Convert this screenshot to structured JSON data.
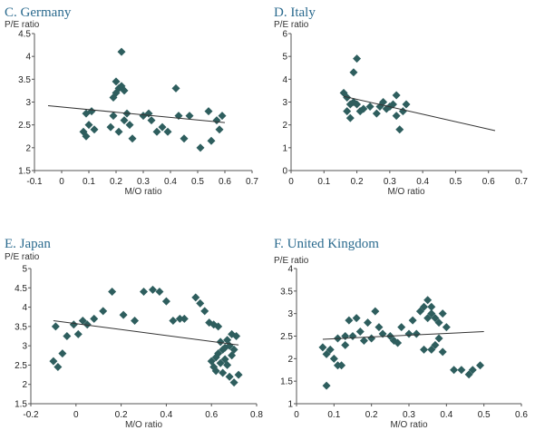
{
  "chart_data": [
    {
      "type": "scatter",
      "title": "C. Germany",
      "ylabel": "P/E ratio",
      "xlabel": "M/O ratio",
      "xlim": [
        -0.1,
        0.7
      ],
      "ylim": [
        1.5,
        4.5
      ],
      "xticks": [
        "-0.1",
        "0",
        "0.1",
        "0.2",
        "0.3",
        "0.4",
        "0.5",
        "0.6",
        "0.7"
      ],
      "yticks": [
        "1.5",
        "2",
        "2.5",
        "3",
        "3.5",
        "4",
        "4.5"
      ],
      "points": [
        [
          0.08,
          2.35
        ],
        [
          0.09,
          2.25
        ],
        [
          0.09,
          2.75
        ],
        [
          0.1,
          2.5
        ],
        [
          0.11,
          2.8
        ],
        [
          0.12,
          2.4
        ],
        [
          0.18,
          2.45
        ],
        [
          0.19,
          2.7
        ],
        [
          0.19,
          3.1
        ],
        [
          0.2,
          3.2
        ],
        [
          0.2,
          3.45
        ],
        [
          0.21,
          3.3
        ],
        [
          0.21,
          2.35
        ],
        [
          0.22,
          4.1
        ],
        [
          0.22,
          3.35
        ],
        [
          0.23,
          2.6
        ],
        [
          0.23,
          3.25
        ],
        [
          0.24,
          2.75
        ],
        [
          0.25,
          2.5
        ],
        [
          0.26,
          2.2
        ],
        [
          0.3,
          2.7
        ],
        [
          0.32,
          2.75
        ],
        [
          0.33,
          2.6
        ],
        [
          0.35,
          2.35
        ],
        [
          0.37,
          2.45
        ],
        [
          0.39,
          2.35
        ],
        [
          0.42,
          3.3
        ],
        [
          0.43,
          2.7
        ],
        [
          0.45,
          2.2
        ],
        [
          0.47,
          2.7
        ],
        [
          0.51,
          2.0
        ],
        [
          0.54,
          2.8
        ],
        [
          0.55,
          2.15
        ],
        [
          0.57,
          2.6
        ],
        [
          0.58,
          2.4
        ],
        [
          0.59,
          2.7
        ]
      ],
      "trend": [
        [
          -0.05,
          2.92
        ],
        [
          0.6,
          2.55
        ]
      ]
    },
    {
      "type": "scatter",
      "title": "D. Italy",
      "ylabel": "P/E ratio",
      "xlabel": "M/O ratio",
      "xlim": [
        0,
        0.7
      ],
      "ylim": [
        0,
        6
      ],
      "xticks": [
        "0",
        "0.1",
        "0.2",
        "0.3",
        "0.4",
        "0.5",
        "0.6",
        "0.7"
      ],
      "yticks": [
        "0",
        "1",
        "2",
        "3",
        "4",
        "5",
        "6"
      ],
      "points": [
        [
          0.16,
          3.4
        ],
        [
          0.17,
          3.2
        ],
        [
          0.17,
          2.6
        ],
        [
          0.18,
          2.3
        ],
        [
          0.18,
          2.9
        ],
        [
          0.19,
          4.3
        ],
        [
          0.19,
          3.0
        ],
        [
          0.2,
          4.9
        ],
        [
          0.2,
          2.9
        ],
        [
          0.21,
          2.6
        ],
        [
          0.22,
          2.7
        ],
        [
          0.24,
          2.8
        ],
        [
          0.26,
          2.5
        ],
        [
          0.27,
          2.8
        ],
        [
          0.28,
          3.0
        ],
        [
          0.29,
          2.7
        ],
        [
          0.3,
          2.8
        ],
        [
          0.31,
          2.9
        ],
        [
          0.32,
          2.4
        ],
        [
          0.32,
          3.3
        ],
        [
          0.33,
          1.8
        ],
        [
          0.34,
          2.6
        ],
        [
          0.35,
          2.9
        ]
      ],
      "trend": [
        [
          0.16,
          3.25
        ],
        [
          0.62,
          1.75
        ]
      ]
    },
    {
      "type": "scatter",
      "title": "E. Japan",
      "ylabel": "P/E ratio",
      "xlabel": "M/O ratio",
      "xlim": [
        -0.2,
        0.8
      ],
      "ylim": [
        1.5,
        5
      ],
      "xticks": [
        "-0.2",
        "0",
        "0.2",
        "0.4",
        "0.6",
        "0.8"
      ],
      "yticks": [
        "1.5",
        "2",
        "2.5",
        "3",
        "3.5",
        "4",
        "4.5",
        "5"
      ],
      "points": [
        [
          -0.1,
          2.6
        ],
        [
          -0.09,
          3.5
        ],
        [
          -0.08,
          2.45
        ],
        [
          -0.06,
          2.8
        ],
        [
          -0.04,
          3.25
        ],
        [
          -0.01,
          3.55
        ],
        [
          0.01,
          3.3
        ],
        [
          0.03,
          3.65
        ],
        [
          0.05,
          3.55
        ],
        [
          0.08,
          3.7
        ],
        [
          0.12,
          3.9
        ],
        [
          0.16,
          4.4
        ],
        [
          0.21,
          3.8
        ],
        [
          0.26,
          3.65
        ],
        [
          0.3,
          4.4
        ],
        [
          0.34,
          4.45
        ],
        [
          0.37,
          4.4
        ],
        [
          0.4,
          4.15
        ],
        [
          0.43,
          3.65
        ],
        [
          0.46,
          3.7
        ],
        [
          0.48,
          3.7
        ],
        [
          0.53,
          4.25
        ],
        [
          0.55,
          4.1
        ],
        [
          0.57,
          3.9
        ],
        [
          0.59,
          3.6
        ],
        [
          0.6,
          2.6
        ],
        [
          0.61,
          2.45
        ],
        [
          0.61,
          3.55
        ],
        [
          0.62,
          2.7
        ],
        [
          0.62,
          2.35
        ],
        [
          0.63,
          2.8
        ],
        [
          0.63,
          3.5
        ],
        [
          0.64,
          2.55
        ],
        [
          0.64,
          3.1
        ],
        [
          0.65,
          2.9
        ],
        [
          0.65,
          2.3
        ],
        [
          0.66,
          2.95
        ],
        [
          0.66,
          2.65
        ],
        [
          0.67,
          3.15
        ],
        [
          0.67,
          2.5
        ],
        [
          0.68,
          3.0
        ],
        [
          0.68,
          2.2
        ],
        [
          0.69,
          3.3
        ],
        [
          0.69,
          2.75
        ],
        [
          0.7,
          2.05
        ],
        [
          0.7,
          2.9
        ],
        [
          0.71,
          3.25
        ],
        [
          0.72,
          2.25
        ]
      ],
      "trend": [
        [
          -0.1,
          3.65
        ],
        [
          0.72,
          3.02
        ]
      ]
    },
    {
      "type": "scatter",
      "title": "F. United Kingdom",
      "ylabel": "P/E ratio",
      "xlabel": "M/O ratio",
      "xlim": [
        0,
        0.6
      ],
      "ylim": [
        1,
        4
      ],
      "xticks": [
        "0",
        "0.1",
        "0.2",
        "0.3",
        "0.4",
        "0.5",
        "0.6"
      ],
      "yticks": [
        "1",
        "1.5",
        "2",
        "2.5",
        "3",
        "3.5",
        "4"
      ],
      "points": [
        [
          0.07,
          2.25
        ],
        [
          0.08,
          2.1
        ],
        [
          0.08,
          1.4
        ],
        [
          0.09,
          2.2
        ],
        [
          0.1,
          2.0
        ],
        [
          0.11,
          1.85
        ],
        [
          0.11,
          2.45
        ],
        [
          0.12,
          1.85
        ],
        [
          0.13,
          2.5
        ],
        [
          0.13,
          2.3
        ],
        [
          0.14,
          2.85
        ],
        [
          0.15,
          2.5
        ],
        [
          0.16,
          2.9
        ],
        [
          0.17,
          2.6
        ],
        [
          0.18,
          2.4
        ],
        [
          0.19,
          2.8
        ],
        [
          0.2,
          2.45
        ],
        [
          0.21,
          3.05
        ],
        [
          0.22,
          2.7
        ],
        [
          0.23,
          2.55
        ],
        [
          0.25,
          2.5
        ],
        [
          0.26,
          2.4
        ],
        [
          0.27,
          2.35
        ],
        [
          0.28,
          2.7
        ],
        [
          0.3,
          2.55
        ],
        [
          0.31,
          2.85
        ],
        [
          0.32,
          2.55
        ],
        [
          0.33,
          3.05
        ],
        [
          0.34,
          3.15
        ],
        [
          0.34,
          2.2
        ],
        [
          0.35,
          3.3
        ],
        [
          0.35,
          2.9
        ],
        [
          0.36,
          3.0
        ],
        [
          0.36,
          3.15
        ],
        [
          0.36,
          2.2
        ],
        [
          0.37,
          2.9
        ],
        [
          0.37,
          2.3
        ],
        [
          0.38,
          2.8
        ],
        [
          0.38,
          2.45
        ],
        [
          0.39,
          3.0
        ],
        [
          0.39,
          2.15
        ],
        [
          0.4,
          2.7
        ],
        [
          0.42,
          1.75
        ],
        [
          0.44,
          1.75
        ],
        [
          0.46,
          1.65
        ],
        [
          0.47,
          1.75
        ],
        [
          0.49,
          1.85
        ]
      ],
      "trend": [
        [
          0.07,
          2.43
        ],
        [
          0.5,
          2.6
        ]
      ]
    }
  ]
}
